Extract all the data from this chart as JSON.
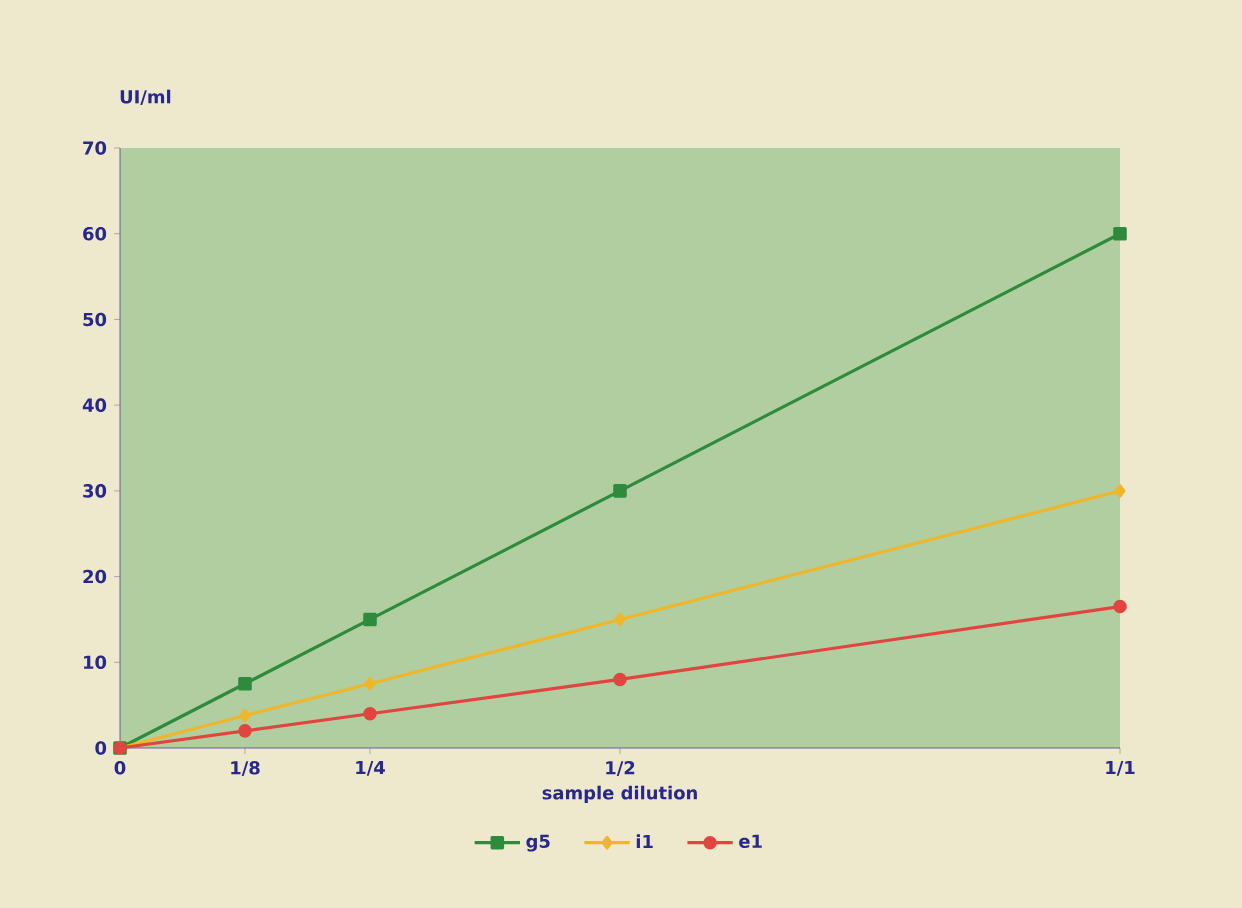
{
  "chart_data": {
    "type": "line",
    "ylabel": "UI/ml",
    "xlabel": "sample dilution",
    "x": [
      0,
      0.125,
      0.25,
      0.5,
      1
    ],
    "series": [
      {
        "name": "g5",
        "color": "#2e8b3e",
        "marker": "square",
        "values": [
          0,
          7.5,
          15,
          30,
          60
        ]
      },
      {
        "name": "i1",
        "color": "#f0b62a",
        "marker": "diamond",
        "values": [
          0,
          3.8,
          7.5,
          15,
          30
        ]
      },
      {
        "name": "e1",
        "color": "#e0453f",
        "marker": "circle",
        "values": [
          0,
          2,
          4,
          8,
          16.5
        ]
      }
    ],
    "xlim": [
      0,
      1
    ],
    "ylim": [
      0,
      70
    ],
    "xticks": [
      0,
      {
        "value": 0.125,
        "label": "1/8"
      },
      {
        "value": 0.25,
        "label": "1/4"
      },
      {
        "value": 0.5,
        "label": "1/2"
      },
      {
        "value": 1,
        "label": "1/1"
      }
    ],
    "yticks": [
      0,
      10,
      20,
      30,
      40,
      50,
      60,
      70
    ],
    "grid": false,
    "legend": "bottom",
    "line_style": "solid"
  }
}
